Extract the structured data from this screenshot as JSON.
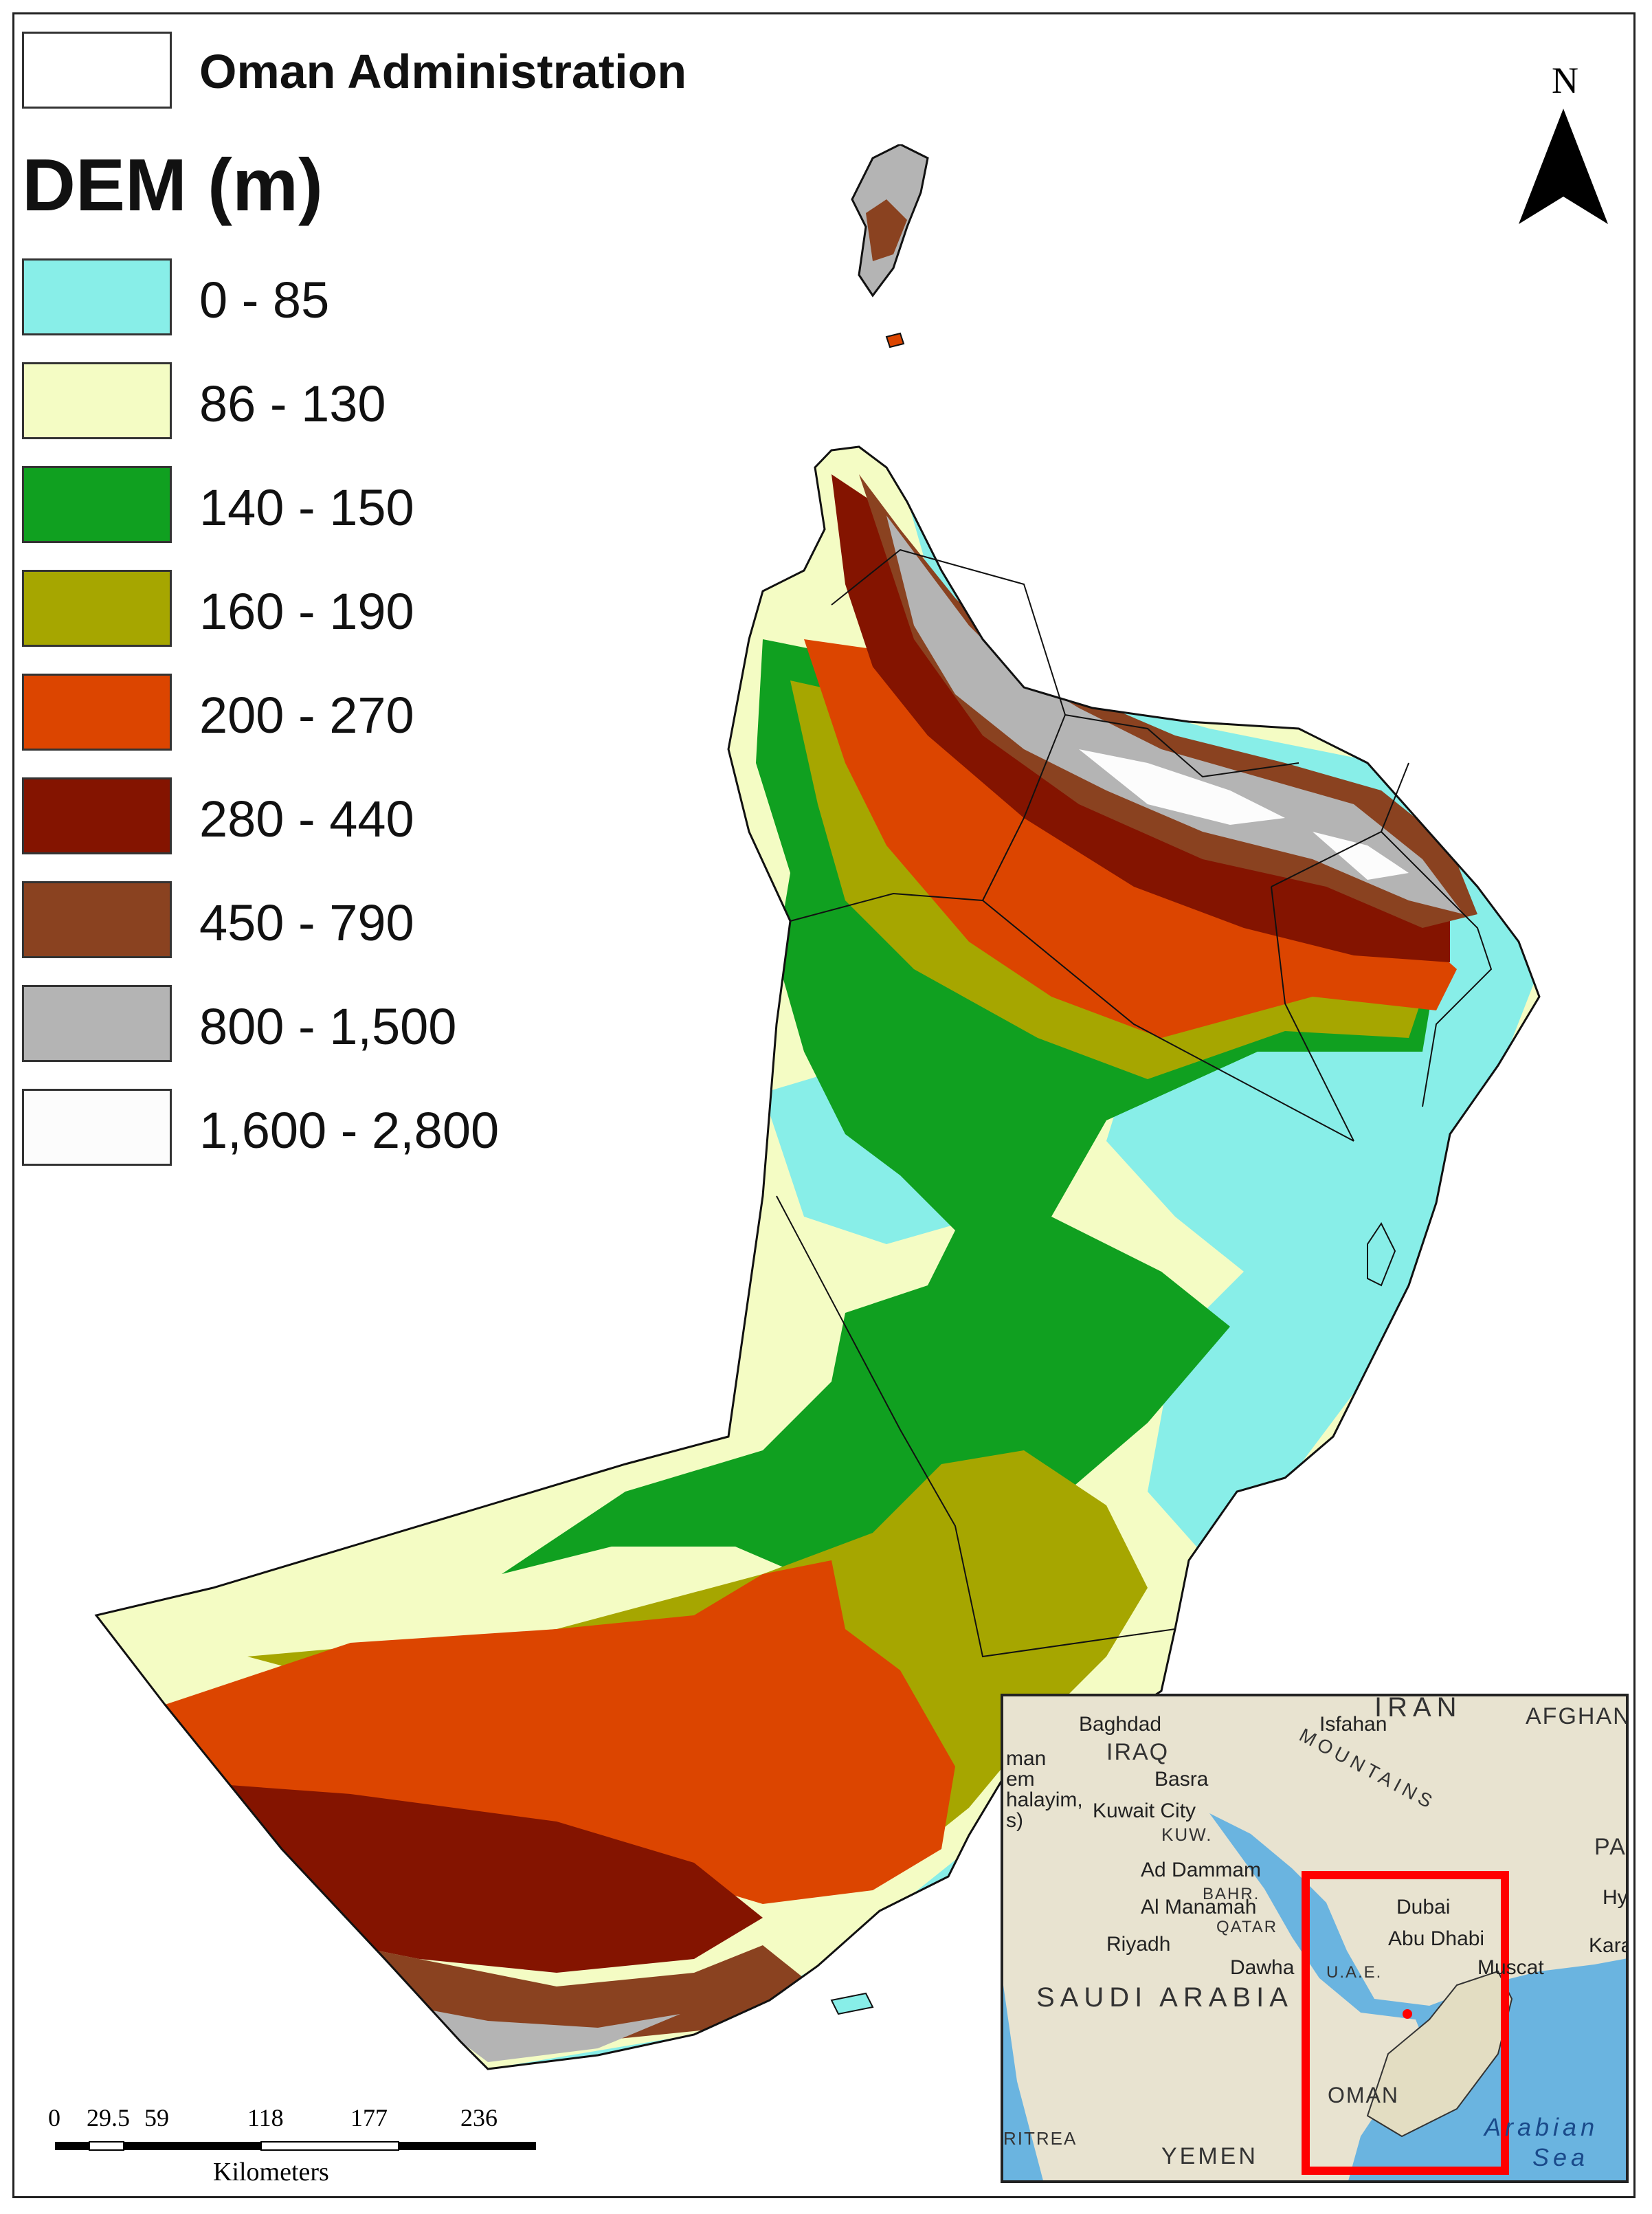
{
  "legend": {
    "admin_label": "Oman Administration",
    "dem_title": "DEM (m)",
    "classes": [
      {
        "label": "0 - 85",
        "color": "#88eee8"
      },
      {
        "label": "86 - 130",
        "color": "#f4fcc4"
      },
      {
        "label": "140 - 150",
        "color": "#10a020"
      },
      {
        "label": "160 - 190",
        "color": "#a6a600"
      },
      {
        "label": "200 - 270",
        "color": "#dc4500"
      },
      {
        "label": "280 - 440",
        "color": "#841400"
      },
      {
        "label": "450 - 790",
        "color": "#8a4220"
      },
      {
        "label": "800 - 1,500",
        "color": "#b4b4b4"
      },
      {
        "label": "1,600 - 2,800",
        "color": "#fcfcfc"
      }
    ]
  },
  "north_arrow": {
    "letter": "N"
  },
  "scale_bar": {
    "ticks": [
      "0",
      "29.5",
      "59",
      "118",
      "177",
      "236"
    ],
    "unit": "Kilometers"
  },
  "inset": {
    "countries": [
      "IRAN",
      "AFGHAN",
      "IRAQ",
      "KUW.",
      "BAHR.",
      "QATAR",
      "U.A.E.",
      "SAUDI ARABIA",
      "OMAN",
      "YEMEN",
      "PAK",
      "RITREA"
    ],
    "cities": [
      "Baghdad",
      "Isfahan",
      "Basra",
      "Kuwait City",
      "Ad Dammam",
      "Al Manamah",
      "Riyadh",
      "Dawha",
      "Dubai",
      "Abu Dhabi",
      "Muscat",
      "Hy",
      "Kara",
      "man",
      "em",
      "halayim,",
      "s)"
    ],
    "features": [
      "MOUNTAINS",
      "Arabian",
      "Sea"
    ],
    "colors": {
      "land": "#e8e3d0",
      "water": "#6ab4e0",
      "highlight": "#ff0000"
    }
  }
}
